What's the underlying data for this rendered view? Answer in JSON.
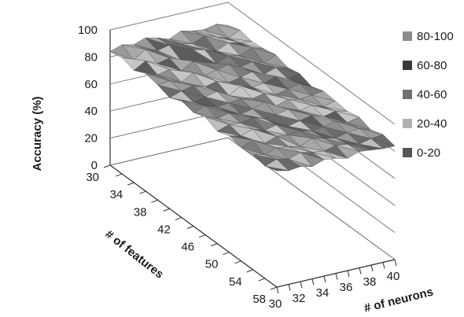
{
  "chart_data": {
    "type": "surface",
    "title": "",
    "zlabel": "Accuracy (%)",
    "ylabel": "# of features",
    "xlabel": "# of neurons",
    "zlim": [
      0,
      100
    ],
    "z_ticks": [
      "0",
      "20",
      "40",
      "60",
      "80",
      "100"
    ],
    "feature_ticks": [
      "30",
      "34",
      "38",
      "42",
      "46",
      "50",
      "54",
      "58"
    ],
    "neuron_ticks": [
      "30",
      "32",
      "34",
      "36",
      "38",
      "40"
    ],
    "features": [
      30,
      32,
      34,
      36,
      38,
      40,
      42,
      44,
      46,
      48,
      50,
      52,
      54,
      56,
      58
    ],
    "neurons": [
      30,
      31,
      32,
      33,
      34,
      35,
      36,
      37,
      38,
      39,
      40
    ],
    "values_note_rows_are_features_cols_are_neurons": "",
    "values": [
      [
        84,
        87,
        85,
        88,
        86,
        83,
        87,
        85,
        84,
        86,
        83
      ],
      [
        86,
        82,
        88,
        85,
        87,
        86,
        84,
        88,
        85,
        82,
        86
      ],
      [
        83,
        88,
        84,
        86,
        82,
        88,
        86,
        83,
        87,
        85,
        84
      ],
      [
        87,
        84,
        86,
        83,
        88,
        85,
        82,
        86,
        84,
        88,
        85
      ],
      [
        85,
        86,
        83,
        88,
        84,
        86,
        88,
        84,
        86,
        83,
        87
      ],
      [
        82,
        85,
        87,
        84,
        86,
        83,
        85,
        87,
        83,
        86,
        84
      ],
      [
        86,
        83,
        85,
        87,
        82,
        87,
        84,
        85,
        88,
        84,
        86
      ],
      [
        84,
        87,
        84,
        85,
        86,
        84,
        86,
        83,
        85,
        87,
        83
      ],
      [
        87,
        84,
        86,
        83,
        85,
        88,
        83,
        86,
        84,
        85,
        86
      ],
      [
        83,
        86,
        85,
        87,
        84,
        85,
        87,
        84,
        86,
        83,
        85
      ],
      [
        86,
        84,
        87,
        84,
        86,
        83,
        85,
        87,
        84,
        86,
        84
      ],
      [
        84,
        87,
        83,
        86,
        85,
        86,
        84,
        85,
        87,
        84,
        86
      ],
      [
        85,
        83,
        86,
        85,
        83,
        87,
        85,
        83,
        85,
        86,
        83
      ],
      [
        83,
        86,
        84,
        87,
        85,
        84,
        86,
        85,
        83,
        85,
        86
      ],
      [
        86,
        84,
        85,
        83,
        86,
        85,
        83,
        86,
        85,
        84,
        84
      ]
    ],
    "legend": [
      {
        "label": "80-100",
        "color": "#8c8c8c"
      },
      {
        "label": "60-80",
        "color": "#3a3a3a"
      },
      {
        "label": "40-60",
        "color": "#707070"
      },
      {
        "label": "20-40",
        "color": "#b0b0b0"
      },
      {
        "label": "0-20",
        "color": "#555555"
      }
    ],
    "legend_position": "right"
  }
}
